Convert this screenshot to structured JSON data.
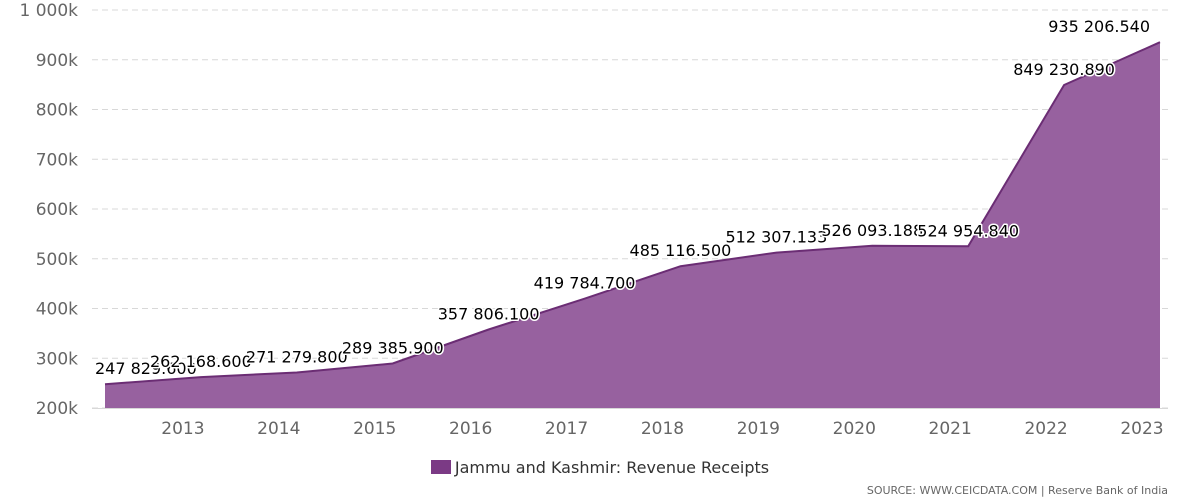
{
  "chart_data": {
    "type": "area",
    "x": [
      "2012",
      "2013",
      "2014",
      "2015",
      "2016",
      "2017",
      "2018",
      "2019",
      "2020",
      "2021",
      "2022",
      "2023"
    ],
    "series": [
      {
        "name": "Jammu and Kashmir: Revenue Receipts",
        "values": [
          247829.6,
          262168.6,
          271279.8,
          289385.9,
          357806.1,
          419784.7,
          485116.5,
          512307.133,
          526093.188,
          524954.84,
          849230.89,
          935206.54
        ],
        "labels": [
          "247 829.600",
          "262 168.600",
          "271 279.800",
          "289 385.900",
          "357 806.100",
          "419 784.700",
          "485 116.500",
          "512 307.133",
          "526 093.188",
          "524 954.840",
          "849 230.890",
          "935 206.540"
        ]
      }
    ],
    "x_tick_labels": [
      "2013",
      "2014",
      "2015",
      "2016",
      "2017",
      "2018",
      "2019",
      "2020",
      "2021",
      "2022",
      "2023"
    ],
    "y_tick_labels": [
      "200k",
      "300k",
      "400k",
      "500k",
      "600k",
      "700k",
      "800k",
      "900k",
      "1 000k"
    ],
    "y_ticks": [
      200000,
      300000,
      400000,
      500000,
      600000,
      700000,
      800000,
      900000,
      1000000
    ],
    "ylim": [
      200000,
      1000000
    ],
    "grid": true,
    "legend_position": "bottom-center",
    "colors": {
      "fill": "#97619f",
      "line": "#6b2d74",
      "legend": "#7b3a85"
    }
  },
  "legend": {
    "label": "Jammu and Kashmir: Revenue Receipts"
  },
  "source": {
    "text": "SOURCE: WWW.CEICDATA.COM | Reserve Bank of India"
  }
}
